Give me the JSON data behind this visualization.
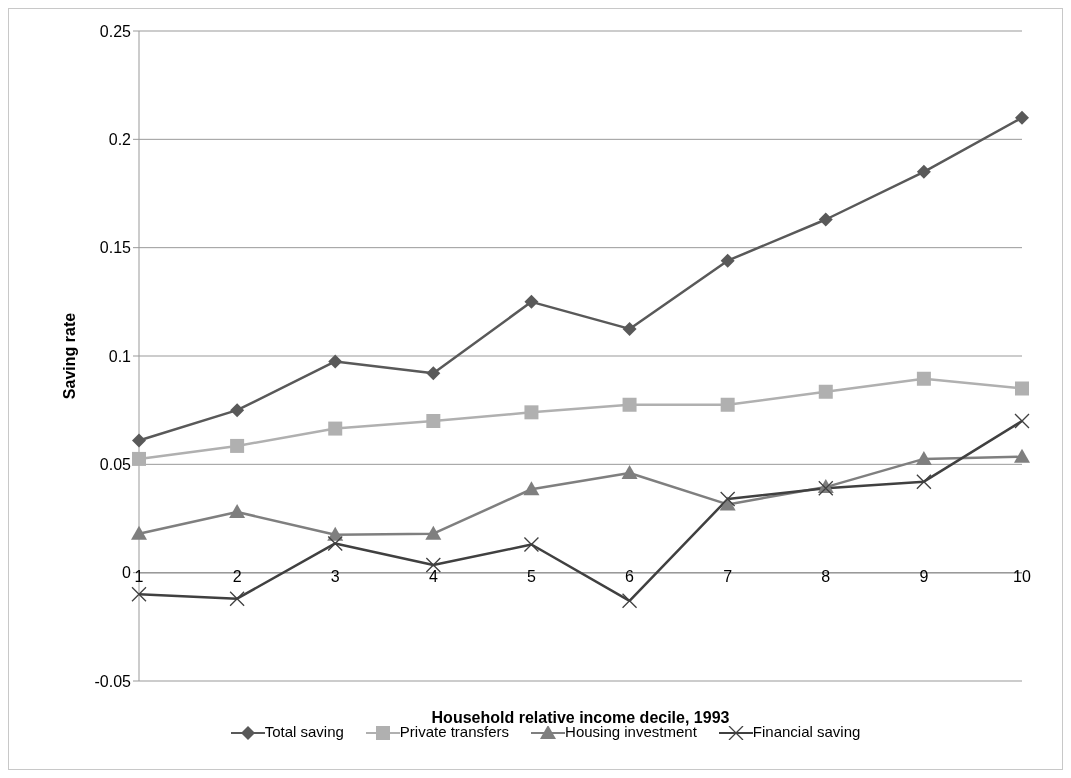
{
  "chart_data": {
    "type": "line",
    "xlabel": "Household relative income decile, 1993",
    "ylabel": "Saving rate",
    "categories": [
      "1",
      "2",
      "3",
      "4",
      "5",
      "6",
      "7",
      "8",
      "9",
      "10"
    ],
    "series": [
      {
        "name": "Total saving",
        "color": "#595959",
        "marker": "diamond",
        "values": [
          0.061,
          0.075,
          0.0975,
          0.092,
          0.125,
          0.1125,
          0.144,
          0.163,
          0.185,
          0.21
        ]
      },
      {
        "name": "Private transfers",
        "color": "#b0b0b0",
        "marker": "square",
        "values": [
          0.0525,
          0.0585,
          0.0665,
          0.07,
          0.074,
          0.0775,
          0.0775,
          0.0835,
          0.0895,
          0.085
        ]
      },
      {
        "name": "Housing investment",
        "color": "#7f7f7f",
        "marker": "triangle",
        "values": [
          0.018,
          0.028,
          0.0175,
          0.018,
          0.0385,
          0.046,
          0.0315,
          0.0395,
          0.0525,
          0.0535
        ]
      },
      {
        "name": "Financial saving",
        "color": "#404040",
        "marker": "cross",
        "values": [
          -0.01,
          -0.012,
          0.0135,
          0.0035,
          0.013,
          -0.013,
          0.034,
          0.039,
          0.042,
          0.07
        ]
      }
    ],
    "ylim": [
      -0.05,
      0.25
    ],
    "yticks": [
      -0.05,
      0,
      0.05,
      0.1,
      0.15,
      0.2,
      0.25
    ],
    "grid": "y",
    "legend": "bottom"
  }
}
